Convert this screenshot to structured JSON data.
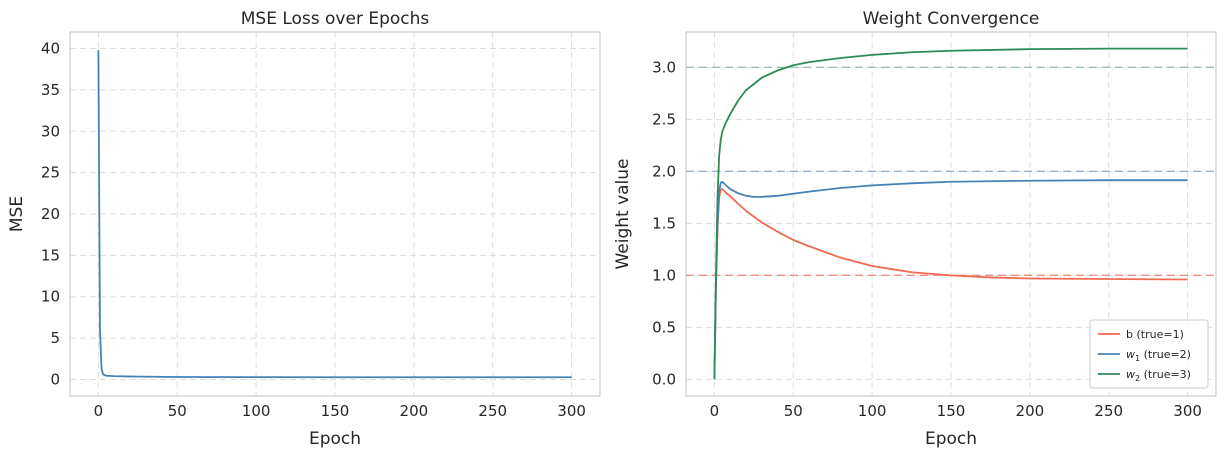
{
  "chart_data": [
    {
      "type": "line",
      "title": "MSE Loss over Epochs",
      "xlabel": "Epoch",
      "ylabel": "MSE",
      "xlim": [
        -18,
        318
      ],
      "ylim": [
        -2,
        42
      ],
      "xticks": [
        0,
        50,
        100,
        150,
        200,
        250,
        300
      ],
      "yticks": [
        0,
        5,
        10,
        15,
        20,
        25,
        30,
        35,
        40
      ],
      "grid": true,
      "series": [
        {
          "color": "#4682b4",
          "x": [
            0,
            1,
            2,
            3,
            5,
            10,
            20,
            50,
            100,
            150,
            200,
            250,
            300
          ],
          "y": [
            39.8,
            6.0,
            1.3,
            0.6,
            0.45,
            0.4,
            0.36,
            0.3,
            0.28,
            0.27,
            0.27,
            0.27,
            0.27
          ]
        }
      ]
    },
    {
      "type": "line",
      "title": "Weight Convergence",
      "xlabel": "Epoch",
      "ylabel": "Weight value",
      "xlim": [
        -18,
        318
      ],
      "ylim": [
        -0.16,
        3.34
      ],
      "xticks": [
        0,
        50,
        100,
        150,
        200,
        250,
        300
      ],
      "yticks": [
        0.0,
        0.5,
        1.0,
        1.5,
        2.0,
        2.5,
        3.0
      ],
      "ytick_labels": [
        "0.0",
        "0.5",
        "1.0",
        "1.5",
        "2.0",
        "2.5",
        "3.0"
      ],
      "grid": true,
      "legend": "bottom-right",
      "reference_lines": [
        {
          "y": 1.0,
          "color": "#f08070"
        },
        {
          "y": 2.0,
          "color": "#87a8c8"
        },
        {
          "y": 3.0,
          "color": "#8fbc9f"
        }
      ],
      "series": [
        {
          "name": "b (true=1)",
          "label_main": "b",
          "label_sub": "",
          "label_rest": " (true=1)",
          "color": "#ee6a50",
          "x": [
            0,
            1,
            2,
            3,
            4,
            5,
            7,
            10,
            15,
            20,
            30,
            40,
            50,
            60,
            80,
            100,
            125,
            150,
            175,
            200,
            250,
            300
          ],
          "y": [
            0.0,
            0.9,
            1.45,
            1.75,
            1.82,
            1.83,
            1.8,
            1.76,
            1.69,
            1.62,
            1.51,
            1.42,
            1.34,
            1.28,
            1.17,
            1.09,
            1.03,
            1.0,
            0.98,
            0.97,
            0.965,
            0.96
          ]
        },
        {
          "name": "w1 (true=2)",
          "label_main": "w",
          "label_sub": "1",
          "label_rest": " (true=2)",
          "color": "#4682b4",
          "x": [
            0,
            1,
            2,
            3,
            4,
            5,
            7,
            10,
            15,
            20,
            25,
            30,
            40,
            50,
            60,
            80,
            100,
            125,
            150,
            200,
            250,
            300
          ],
          "y": [
            0.0,
            0.95,
            1.5,
            1.8,
            1.89,
            1.9,
            1.87,
            1.83,
            1.79,
            1.765,
            1.755,
            1.755,
            1.765,
            1.785,
            1.805,
            1.84,
            1.865,
            1.885,
            1.9,
            1.91,
            1.915,
            1.915
          ]
        },
        {
          "name": "w2 (true=3)",
          "label_main": "w",
          "label_sub": "2",
          "label_rest": " (true=3)",
          "color": "#2e8b57",
          "x": [
            0,
            1,
            2,
            3,
            4,
            5,
            7,
            10,
            15,
            20,
            30,
            40,
            50,
            60,
            80,
            100,
            125,
            150,
            200,
            250,
            300
          ],
          "y": [
            0.0,
            1.0,
            1.75,
            2.15,
            2.3,
            2.38,
            2.46,
            2.55,
            2.68,
            2.78,
            2.9,
            2.97,
            3.02,
            3.05,
            3.09,
            3.12,
            3.145,
            3.16,
            3.175,
            3.18,
            3.18
          ]
        }
      ]
    }
  ]
}
